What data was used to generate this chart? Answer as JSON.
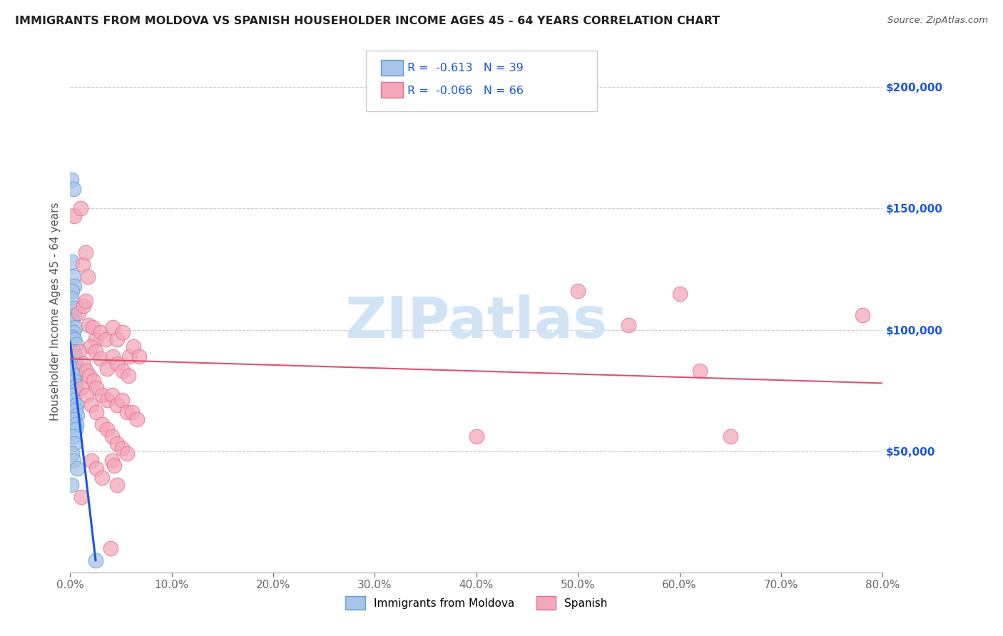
{
  "title": "IMMIGRANTS FROM MOLDOVA VS SPANISH HOUSEHOLDER INCOME AGES 45 - 64 YEARS CORRELATION CHART",
  "source": "Source: ZipAtlas.com",
  "xlabel_ticks": [
    "0.0%",
    "10.0%",
    "20.0%",
    "30.0%",
    "40.0%",
    "50.0%",
    "60.0%",
    "70.0%",
    "80.0%"
  ],
  "ylabel": "Householder Income Ages 45 - 64 years",
  "xlim": [
    0.0,
    0.8
  ],
  "ylim": [
    0,
    215000
  ],
  "legend_bottom_label1": "Immigrants from Moldova",
  "legend_bottom_label2": "Spanish",
  "moldova_color": "#a8c4e8",
  "moldova_edge_color": "#5a9fd4",
  "spanish_color": "#f4a7b9",
  "spanish_edge_color": "#e07090",
  "trendline_moldova_color": "#1a56db",
  "trendline_spanish_color": "#e05070",
  "r_color": "#1a56db",
  "watermark_color": "#d0e4f5",
  "moldova_points": [
    [
      0.001,
      162000
    ],
    [
      0.003,
      158000
    ],
    [
      0.002,
      128000
    ],
    [
      0.003,
      122000
    ],
    [
      0.004,
      118000
    ],
    [
      0.002,
      116000
    ],
    [
      0.001,
      113000
    ],
    [
      0.003,
      109000
    ],
    [
      0.004,
      106000
    ],
    [
      0.002,
      104000
    ],
    [
      0.005,
      101000
    ],
    [
      0.003,
      99000
    ],
    [
      0.002,
      97000
    ],
    [
      0.004,
      96000
    ],
    [
      0.006,
      94000
    ],
    [
      0.003,
      91000
    ],
    [
      0.005,
      89000
    ],
    [
      0.004,
      87000
    ],
    [
      0.006,
      86000
    ],
    [
      0.003,
      84000
    ],
    [
      0.005,
      81000
    ],
    [
      0.004,
      79000
    ],
    [
      0.006,
      77000
    ],
    [
      0.005,
      75000
    ],
    [
      0.003,
      73000
    ],
    [
      0.004,
      71000
    ],
    [
      0.006,
      69000
    ],
    [
      0.005,
      67000
    ],
    [
      0.007,
      65000
    ],
    [
      0.004,
      63000
    ],
    [
      0.006,
      61000
    ],
    [
      0.005,
      59000
    ],
    [
      0.003,
      56000
    ],
    [
      0.004,
      53000
    ],
    [
      0.002,
      49000
    ],
    [
      0.003,
      46000
    ],
    [
      0.007,
      43000
    ],
    [
      0.001,
      36000
    ],
    [
      0.025,
      5000
    ]
  ],
  "spanish_points": [
    [
      0.004,
      147000
    ],
    [
      0.01,
      150000
    ],
    [
      0.012,
      127000
    ],
    [
      0.015,
      132000
    ],
    [
      0.017,
      122000
    ],
    [
      0.008,
      107000
    ],
    [
      0.013,
      110000
    ],
    [
      0.015,
      112000
    ],
    [
      0.018,
      102000
    ],
    [
      0.022,
      101000
    ],
    [
      0.025,
      96000
    ],
    [
      0.03,
      99000
    ],
    [
      0.035,
      96000
    ],
    [
      0.042,
      101000
    ],
    [
      0.046,
      96000
    ],
    [
      0.052,
      99000
    ],
    [
      0.058,
      89000
    ],
    [
      0.062,
      93000
    ],
    [
      0.068,
      89000
    ],
    [
      0.02,
      93000
    ],
    [
      0.025,
      91000
    ],
    [
      0.03,
      88000
    ],
    [
      0.036,
      84000
    ],
    [
      0.042,
      89000
    ],
    [
      0.046,
      86000
    ],
    [
      0.052,
      83000
    ],
    [
      0.057,
      81000
    ],
    [
      0.009,
      91000
    ],
    [
      0.013,
      86000
    ],
    [
      0.016,
      83000
    ],
    [
      0.019,
      81000
    ],
    [
      0.023,
      79000
    ],
    [
      0.026,
      76000
    ],
    [
      0.031,
      73000
    ],
    [
      0.036,
      71000
    ],
    [
      0.041,
      73000
    ],
    [
      0.046,
      69000
    ],
    [
      0.051,
      71000
    ],
    [
      0.056,
      66000
    ],
    [
      0.061,
      66000
    ],
    [
      0.066,
      63000
    ],
    [
      0.011,
      76000
    ],
    [
      0.016,
      73000
    ],
    [
      0.021,
      69000
    ],
    [
      0.026,
      66000
    ],
    [
      0.031,
      61000
    ],
    [
      0.036,
      59000
    ],
    [
      0.041,
      56000
    ],
    [
      0.046,
      53000
    ],
    [
      0.051,
      51000
    ],
    [
      0.056,
      49000
    ],
    [
      0.021,
      46000
    ],
    [
      0.026,
      43000
    ],
    [
      0.031,
      39000
    ],
    [
      0.046,
      36000
    ],
    [
      0.041,
      46000
    ],
    [
      0.043,
      44000
    ],
    [
      0.011,
      31000
    ],
    [
      0.04,
      10000
    ],
    [
      0.62,
      83000
    ],
    [
      0.65,
      56000
    ],
    [
      0.4,
      56000
    ],
    [
      0.78,
      106000
    ],
    [
      0.5,
      116000
    ],
    [
      0.55,
      102000
    ],
    [
      0.6,
      115000
    ]
  ]
}
